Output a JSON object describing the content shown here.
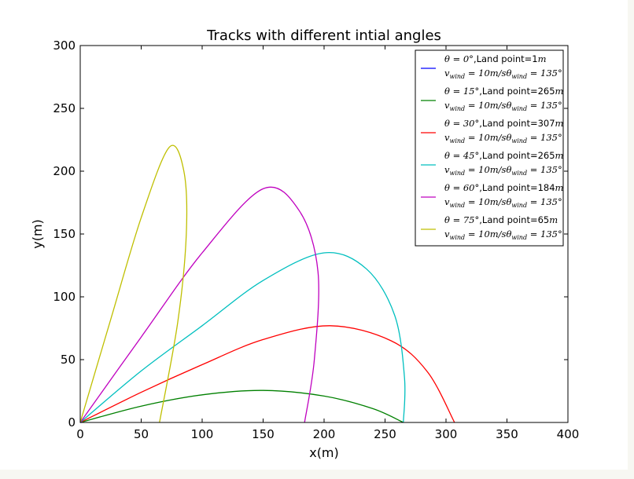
{
  "chart_data": {
    "type": "line",
    "title": "Tracks with different intial angles",
    "xlabel": "x(m)",
    "ylabel": "y(m)",
    "xlim": [
      0,
      400
    ],
    "ylim": [
      0,
      300
    ],
    "xticks": [
      0,
      50,
      100,
      150,
      200,
      250,
      300,
      350,
      400
    ],
    "yticks": [
      0,
      50,
      100,
      150,
      200,
      250,
      300
    ],
    "grid": false,
    "legend_position": "top-right",
    "legend_wind_label": "v_wind = 10m/s θ_wind = 135°",
    "series": [
      {
        "name": "θ=0°,Land point=1m",
        "angle_label": "θ = 0°",
        "land_point_label": ",Land point=1",
        "color": "#0000ff",
        "x": [
          0,
          1
        ],
        "y": [
          0,
          0
        ]
      },
      {
        "name": "θ=15°,Land point=265m",
        "angle_label": "θ = 15°",
        "land_point_label": ",Land point=265",
        "color": "#008000",
        "x": [
          0,
          50,
          100,
          150,
          200,
          240,
          265
        ],
        "y": [
          0,
          13,
          22,
          25.5,
          21,
          11,
          0
        ]
      },
      {
        "name": "θ=30°,Land point=307m",
        "angle_label": "θ = 30°",
        "land_point_label": ",Land point=307",
        "color": "#ff0000",
        "x": [
          0,
          50,
          100,
          150,
          205,
          255,
          285,
          307
        ],
        "y": [
          0,
          24,
          46,
          66,
          77,
          65,
          40,
          0
        ]
      },
      {
        "name": "θ=45°,Land point=265m",
        "angle_label": "θ = 45°",
        "land_point_label": ",Land point=265",
        "color": "#00bfbf",
        "x": [
          0,
          50,
          100,
          150,
          200,
          235,
          258,
          266,
          265
        ],
        "y": [
          0,
          41,
          77,
          113,
          135,
          122,
          85,
          35,
          0
        ]
      },
      {
        "name": "θ=60°,Land point=184m",
        "angle_label": "θ = 60°",
        "land_point_label": ",Land point=184",
        "color": "#bf00bf",
        "x": [
          0,
          50,
          100,
          150,
          180,
          195,
          192,
          184
        ],
        "y": [
          0,
          68,
          135,
          186,
          168,
          120,
          50,
          0
        ]
      },
      {
        "name": "θ=75°,Land point=65m",
        "angle_label": "θ = 75°",
        "land_point_label": ",Land point=65",
        "color": "#bfbf00",
        "x": [
          0,
          25,
          50,
          73,
          85,
          87,
          80,
          65
        ],
        "y": [
          0,
          82,
          163,
          219,
          200,
          150,
          80,
          0
        ]
      }
    ]
  }
}
